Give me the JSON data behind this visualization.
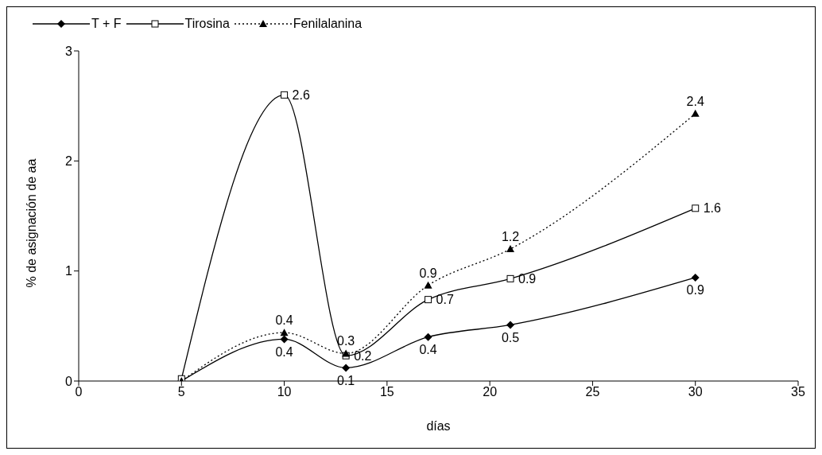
{
  "chart_data": {
    "type": "line",
    "xlabel": "días",
    "ylabel": "% de asignación de aa",
    "x": [
      5,
      10,
      13,
      17,
      21,
      30
    ],
    "series": [
      {
        "name": "T + F",
        "color": "#000000",
        "marker": "diamond",
        "line_style": "solid",
        "values": [
          0,
          0.38,
          0.12,
          0.4,
          0.51,
          0.94
        ],
        "value_labels": [
          null,
          "0.4",
          "0.1",
          "0.4",
          "0.5",
          "0.9"
        ]
      },
      {
        "name": "Tirosina",
        "color": "#000000",
        "marker": "square",
        "line_style": "solid",
        "values": [
          0.02,
          2.6,
          0.23,
          0.74,
          0.93,
          1.57
        ],
        "value_labels": [
          null,
          "2.6",
          "0.2",
          "0.7",
          "0.9",
          "1.6"
        ]
      },
      {
        "name": "Fenilalanina",
        "color": "#000000",
        "marker": "triangle",
        "line_style": "dotted",
        "values": [
          0,
          0.44,
          0.25,
          0.87,
          1.2,
          2.43
        ],
        "value_labels": [
          null,
          "0.4",
          "0.3",
          "0.9",
          "1.2",
          "2.4"
        ]
      }
    ],
    "xlim": [
      0,
      35
    ],
    "xticks": [
      0,
      5,
      10,
      15,
      20,
      25,
      30,
      35
    ],
    "ylim": [
      0,
      3
    ],
    "yticks": [
      0,
      1,
      2,
      3
    ],
    "grid": false,
    "legend": "top left"
  }
}
